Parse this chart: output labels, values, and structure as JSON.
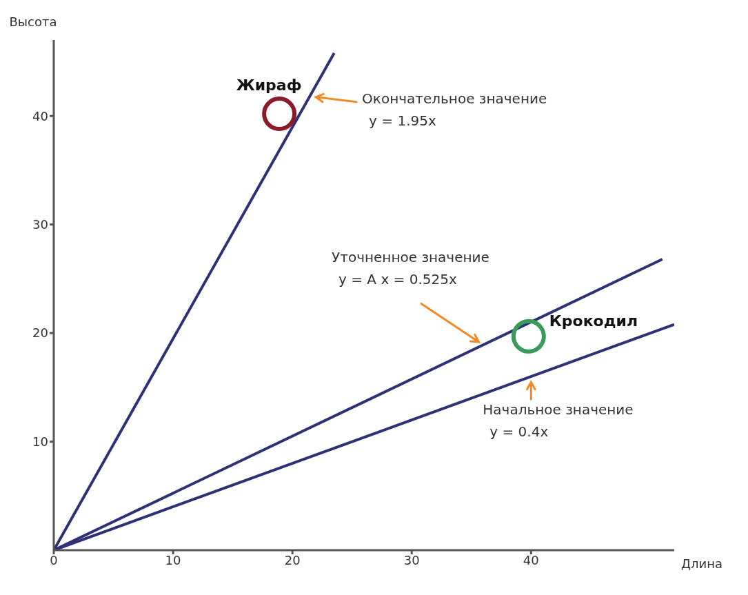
{
  "chart_data": {
    "type": "line",
    "xlabel": "Длина",
    "ylabel": "Высота",
    "xlim": [
      0,
      52
    ],
    "ylim": [
      0,
      47
    ],
    "xticks": [
      0,
      10,
      20,
      30,
      40
    ],
    "yticks": [
      10,
      20,
      30,
      40
    ],
    "grid": false,
    "legend": false,
    "line_style": "solid",
    "series": [
      {
        "color": "#2e3275",
        "x": [
          0,
          23.5
        ],
        "values": [
          0,
          45.8
        ]
      },
      {
        "color": "#2e3275",
        "x": [
          0,
          51
        ],
        "values": [
          0,
          26.8
        ]
      },
      {
        "color": "#2e3275",
        "x": [
          0,
          52
        ],
        "values": [
          0,
          20.8
        ]
      },
      {
        "type": "scatter",
        "marker": "circle",
        "name": "Жираф",
        "color": "#8b1a2a",
        "x": [
          18.9
        ],
        "values": [
          40.2
        ]
      },
      {
        "type": "scatter",
        "marker": "circle",
        "name": "Крокодил",
        "color": "#3a9a5a",
        "x": [
          39.8
        ],
        "values": [
          19.7
        ]
      }
    ],
    "annotations": [
      "Окончательное значение\ny = 1.95x",
      "Уточненное значение\ny = A x = 0.525x",
      "Начальное значение\ny = 0.4x"
    ]
  }
}
